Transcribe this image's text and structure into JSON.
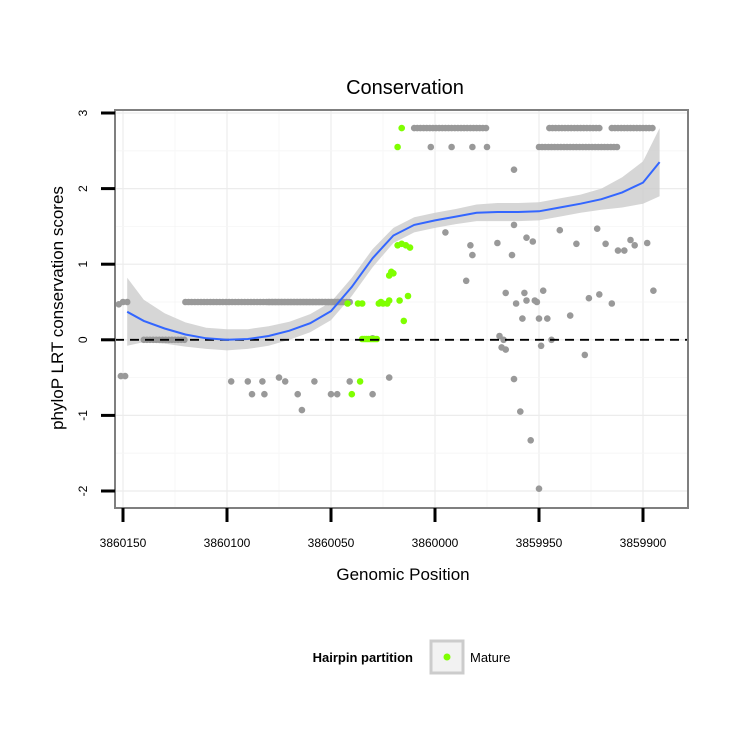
{
  "chart_data": {
    "type": "scatter",
    "title": "Conservation",
    "xlabel": "Genomic Position",
    "ylabel": "phyloP LRT conservation scores",
    "xlim": [
      3860150,
      3859890
    ],
    "x_reversed": true,
    "ylim": [
      -2.2,
      3.1
    ],
    "x_ticks": [
      3860150,
      3860100,
      3860050,
      3860000,
      3859950,
      3859900
    ],
    "x_tick_labels": [
      "3860150",
      "3860100",
      "3860050",
      "3860000",
      "3859950",
      "3859900"
    ],
    "y_ticks": [
      -2,
      -1,
      0,
      1,
      2,
      3
    ],
    "y_tick_labels": [
      "-2",
      "-1",
      "0",
      "1",
      "2",
      "3"
    ],
    "grid": true,
    "reference_line": {
      "y": 0,
      "style": "dashed",
      "color": "#000000"
    },
    "colors": {
      "other": "#999999",
      "mature": "#7fff00",
      "smooth_line": "#3366ff",
      "ribbon": "#cccccc",
      "panel_border": "#7f7f7f"
    },
    "legend": {
      "title": "Hairpin partition",
      "entries": [
        {
          "label": "Mature",
          "color": "#7fff00"
        }
      ],
      "position": "bottom"
    },
    "series": [
      {
        "name": "Other",
        "color": "#999999",
        "bands": [
          {
            "x_from": 3860120,
            "x_to": 3860045,
            "y": 0.5,
            "step": 1.5
          },
          {
            "x_from": 3860080,
            "x_to": 3860040,
            "y": 0.5,
            "step": 1.5
          },
          {
            "x_from": 3860140,
            "x_to": 3860120,
            "y": 0.0,
            "step": 1.5
          },
          {
            "x_from": 3860010,
            "x_to": 3859975,
            "y": 2.8,
            "step": 1.5
          },
          {
            "x_from": 3859945,
            "x_to": 3859920,
            "y": 2.8,
            "step": 1.5
          },
          {
            "x_from": 3859915,
            "x_to": 3859895,
            "y": 2.8,
            "step": 1.5
          },
          {
            "x_from": 3859950,
            "x_to": 3859912,
            "y": 2.55,
            "step": 1.5
          }
        ],
        "points": [
          [
            3860152,
            0.47
          ],
          [
            3860150,
            0.5
          ],
          [
            3860148,
            0.5
          ],
          [
            3860151,
            -0.48
          ],
          [
            3860149,
            -0.48
          ],
          [
            3860098,
            -0.55
          ],
          [
            3860090,
            -0.55
          ],
          [
            3860088,
            -0.72
          ],
          [
            3860083,
            -0.55
          ],
          [
            3860082,
            -0.72
          ],
          [
            3860075,
            -0.5
          ],
          [
            3860072,
            -0.55
          ],
          [
            3860066,
            -0.72
          ],
          [
            3860064,
            -0.93
          ],
          [
            3860058,
            -0.55
          ],
          [
            3860050,
            -0.72
          ],
          [
            3860047,
            -0.72
          ],
          [
            3860041,
            -0.55
          ],
          [
            3860030,
            0.02
          ],
          [
            3860030,
            -0.72
          ],
          [
            3860022,
            -0.5
          ],
          [
            3860002,
            2.55
          ],
          [
            3859995,
            1.42
          ],
          [
            3859992,
            2.55
          ],
          [
            3859985,
            0.78
          ],
          [
            3859983,
            1.25
          ],
          [
            3859982,
            1.12
          ],
          [
            3859982,
            2.55
          ],
          [
            3859975,
            2.55
          ],
          [
            3859970,
            1.28
          ],
          [
            3859969,
            0.05
          ],
          [
            3859968,
            -0.1
          ],
          [
            3859967,
            0.0
          ],
          [
            3859966,
            -0.13
          ],
          [
            3859966,
            0.62
          ],
          [
            3859963,
            1.12
          ],
          [
            3859962,
            -0.52
          ],
          [
            3859962,
            1.52
          ],
          [
            3859962,
            2.25
          ],
          [
            3859961,
            0.48
          ],
          [
            3859959,
            -0.95
          ],
          [
            3859958,
            0.28
          ],
          [
            3859957,
            0.62
          ],
          [
            3859956,
            1.35
          ],
          [
            3859956,
            0.52
          ],
          [
            3859954,
            -1.33
          ],
          [
            3859953,
            1.3
          ],
          [
            3859952,
            0.52
          ],
          [
            3859951,
            0.5
          ],
          [
            3859950,
            -1.97
          ],
          [
            3859950,
            0.28
          ],
          [
            3859949,
            -0.08
          ],
          [
            3859948,
            0.65
          ],
          [
            3859946,
            0.28
          ],
          [
            3859944,
            0.0
          ],
          [
            3859940,
            1.45
          ],
          [
            3859935,
            0.32
          ],
          [
            3859932,
            1.27
          ],
          [
            3859928,
            -0.2
          ],
          [
            3859926,
            0.55
          ],
          [
            3859922,
            1.47
          ],
          [
            3859921,
            0.6
          ],
          [
            3859918,
            1.27
          ],
          [
            3859915,
            0.48
          ],
          [
            3859912,
            1.18
          ],
          [
            3859909,
            1.18
          ],
          [
            3859906,
            1.32
          ],
          [
            3859904,
            1.25
          ],
          [
            3859898,
            1.28
          ],
          [
            3859895,
            0.65
          ]
        ]
      },
      {
        "name": "Mature",
        "color": "#7fff00",
        "bands": [
          {
            "x_from": 3860035,
            "x_to": 3860028,
            "y": 0.01,
            "step": 1.0
          }
        ],
        "points": [
          [
            3860042,
            0.48
          ],
          [
            3860040,
            -0.72
          ],
          [
            3860037,
            0.48
          ],
          [
            3860036,
            -0.55
          ],
          [
            3860035,
            0.48
          ],
          [
            3860027,
            0.48
          ],
          [
            3860026,
            0.5
          ],
          [
            3860025,
            0.48
          ],
          [
            3860023,
            0.48
          ],
          [
            3860022,
            0.52
          ],
          [
            3860022,
            0.85
          ],
          [
            3860021,
            0.9
          ],
          [
            3860020,
            0.88
          ],
          [
            3860018,
            1.25
          ],
          [
            3860018,
            2.55
          ],
          [
            3860017,
            0.52
          ],
          [
            3860016,
            1.27
          ],
          [
            3860016,
            2.8
          ],
          [
            3860015,
            0.25
          ],
          [
            3860014,
            1.25
          ],
          [
            3860013,
            0.58
          ],
          [
            3860012,
            1.22
          ]
        ]
      }
    ],
    "smooth": {
      "name": "loess fit",
      "x": [
        3860148,
        3860140,
        3860130,
        3860120,
        3860110,
        3860100,
        3860090,
        3860080,
        3860070,
        3860060,
        3860050,
        3860040,
        3860030,
        3860020,
        3860010,
        3860000,
        3859990,
        3859980,
        3859970,
        3859960,
        3859950,
        3859940,
        3859930,
        3859920,
        3859910,
        3859900,
        3859892
      ],
      "y": [
        0.37,
        0.25,
        0.15,
        0.07,
        0.02,
        0.0,
        0.01,
        0.05,
        0.12,
        0.22,
        0.38,
        0.7,
        1.08,
        1.38,
        1.52,
        1.58,
        1.63,
        1.68,
        1.69,
        1.69,
        1.7,
        1.75,
        1.8,
        1.86,
        1.95,
        2.08,
        2.35
      ],
      "ribbon_halfwidth": [
        0.45,
        0.28,
        0.2,
        0.16,
        0.14,
        0.14,
        0.13,
        0.13,
        0.12,
        0.12,
        0.12,
        0.12,
        0.12,
        0.1,
        0.1,
        0.1,
        0.1,
        0.11,
        0.12,
        0.12,
        0.12,
        0.12,
        0.12,
        0.14,
        0.2,
        0.28,
        0.45
      ]
    }
  }
}
